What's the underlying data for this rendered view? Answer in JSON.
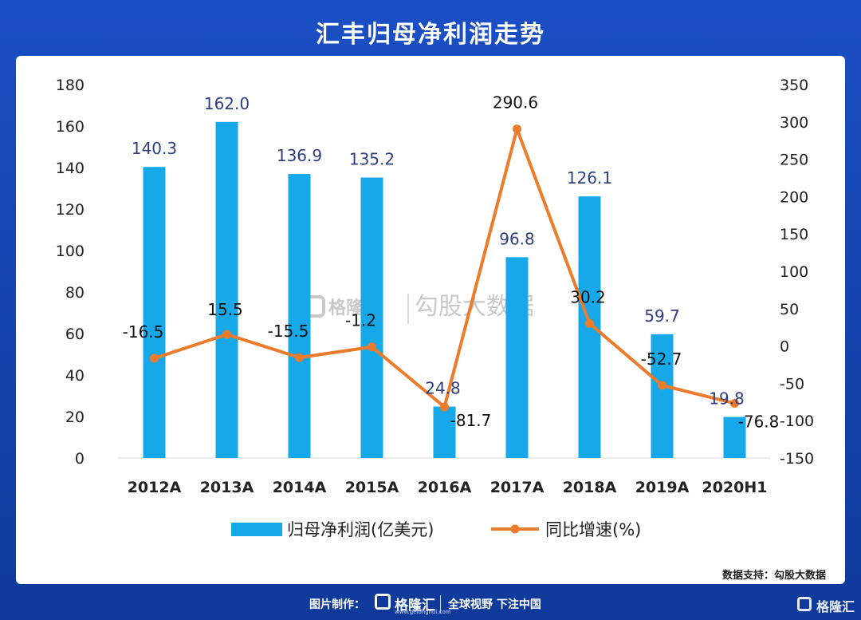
{
  "header": {
    "title": "汇丰归母净利润走势"
  },
  "watermark": {
    "brand": "格隆汇",
    "text": "勾股大数据"
  },
  "source": "数据支持：勾股大数据",
  "footer": {
    "made_by": "图片制作：",
    "brand": "格隆汇",
    "brand_url": "www.gelonghui.com",
    "slogan": "全球视野 下注中国",
    "corner_brand": "格隆汇"
  },
  "colors": {
    "bar": "#16a8e8",
    "line": "#ec7c2c",
    "bar_label": "#2e3f80",
    "line_label": "#111111"
  },
  "chart_data": {
    "type": "bar",
    "categories": [
      "2012A",
      "2013A",
      "2014A",
      "2015A",
      "2016A",
      "2017A",
      "2018A",
      "2019A",
      "2020H1"
    ],
    "series": [
      {
        "name": "归母净利润(亿美元)",
        "type": "bar",
        "axis": "left",
        "values": [
          140.3,
          162.0,
          136.9,
          135.2,
          24.8,
          96.8,
          126.1,
          59.7,
          19.8
        ],
        "labels": [
          "140.3",
          "162.0",
          "136.9",
          "135.2",
          "24.8",
          "96.8",
          "126.1",
          "59.7",
          "19.8"
        ]
      },
      {
        "name": "同比增速(%)",
        "type": "line",
        "axis": "right",
        "values": [
          -16.5,
          15.5,
          -15.5,
          -1.2,
          -81.7,
          290.6,
          30.2,
          -52.7,
          -76.8
        ],
        "labels": [
          "-16.5",
          "15.5",
          "-15.5",
          "-1.2",
          "-81.7",
          "290.6",
          "30.2",
          "-52.7",
          "-76.8"
        ]
      }
    ],
    "y_left": {
      "min": 0,
      "max": 180,
      "ticks": [
        "0",
        "20",
        "40",
        "60",
        "80",
        "100",
        "120",
        "140",
        "160",
        "180"
      ]
    },
    "y_right": {
      "min": -150,
      "max": 350,
      "ticks": [
        "-150",
        "-100",
        "-50",
        "0",
        "50",
        "100",
        "150",
        "200",
        "250",
        "300",
        "350"
      ]
    },
    "grid": false,
    "legend_position": "bottom"
  }
}
